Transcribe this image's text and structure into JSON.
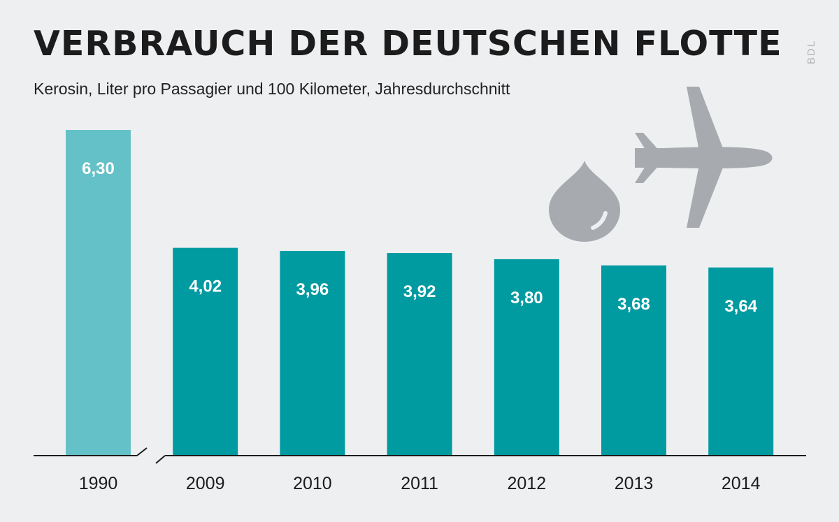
{
  "header": {
    "title": "VERBRAUCH DER DEUTSCHEN FLOTTE",
    "subtitle": "Kerosin, Liter pro Passagier und 100 Kilometer, Jahresdurchschnitt",
    "source": "BDL"
  },
  "icons": [
    "drop-icon",
    "airplane-icon"
  ],
  "colors": {
    "background": "#eeeff1",
    "bar_highlight": "#65c1c8",
    "bar": "#009aa1",
    "icon": "#a7abaf",
    "axis": "#1c1c1c"
  },
  "chart_data": {
    "type": "bar",
    "title": "VERBRAUCH DER DEUTSCHEN FLOTTE",
    "subtitle": "Kerosin, Liter pro Passagier und 100 Kilometer, Jahresdurchschnitt",
    "categories": [
      "1990",
      "2009",
      "2010",
      "2011",
      "2012",
      "2013",
      "2014"
    ],
    "values": [
      6.3,
      4.02,
      3.96,
      3.92,
      3.8,
      3.68,
      3.64
    ],
    "value_labels": [
      "6,30",
      "4,02",
      "3,96",
      "3,92",
      "3,80",
      "3,68",
      "3,64"
    ],
    "xlabel": "",
    "ylabel": "",
    "ylim": [
      0,
      6.3
    ],
    "axis_break_after": "1990",
    "grid": false,
    "legend": "none"
  }
}
